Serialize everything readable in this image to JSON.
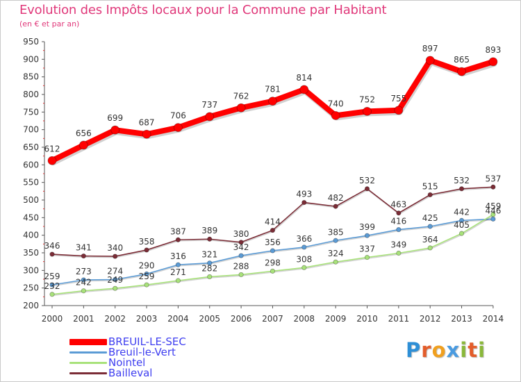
{
  "header": {
    "title": "Evolution des Impôts locaux pour la Commune par Habitant",
    "subtitle": "(en € et par an)"
  },
  "brand": {
    "letters": [
      {
        "ch": "P",
        "color": "#2e8fd6"
      },
      {
        "ch": "r",
        "color": "#e35d2b"
      },
      {
        "ch": "o",
        "color": "#f0a020"
      },
      {
        "ch": "x",
        "color": "#4a9be0"
      },
      {
        "ch": "i",
        "color": "#8ab83a"
      },
      {
        "ch": "t",
        "color": "#e35d2b"
      },
      {
        "ch": "i",
        "color": "#8ab83a"
      }
    ]
  },
  "chart_data": {
    "type": "line",
    "title": "Evolution des Impôts locaux pour la Commune par Habitant",
    "x": [
      "2000",
      "2001",
      "2002",
      "2003",
      "2004",
      "2005",
      "2006",
      "2007",
      "2008",
      "2009",
      "2010",
      "2011",
      "2012",
      "2013",
      "2014"
    ],
    "ylim": [
      200,
      950
    ],
    "yticks": [
      200,
      250,
      300,
      350,
      400,
      450,
      500,
      550,
      600,
      650,
      700,
      750,
      800,
      850,
      900,
      950
    ],
    "grid": false,
    "legend_position": "bottom-left",
    "series": [
      {
        "name": "BREUIL-LE-SEC",
        "color": "#ff0000",
        "values": [
          612,
          656,
          699,
          687,
          706,
          737,
          762,
          781,
          814,
          740,
          752,
          755,
          897,
          865,
          893
        ]
      },
      {
        "name": "Breuil-le-Vert",
        "color": "#5b9bd5",
        "values": [
          259,
          273,
          274,
          290,
          316,
          321,
          342,
          356,
          366,
          385,
          399,
          416,
          425,
          442,
          446
        ]
      },
      {
        "name": "Nointel",
        "color": "#a8e27a",
        "values": [
          232,
          242,
          249,
          259,
          271,
          282,
          288,
          298,
          308,
          324,
          337,
          349,
          364,
          405,
          459
        ]
      },
      {
        "name": "Bailleval",
        "color": "#7b2c36",
        "values": [
          346,
          341,
          340,
          358,
          387,
          389,
          380,
          414,
          493,
          482,
          532,
          463,
          515,
          532,
          537
        ]
      }
    ]
  }
}
